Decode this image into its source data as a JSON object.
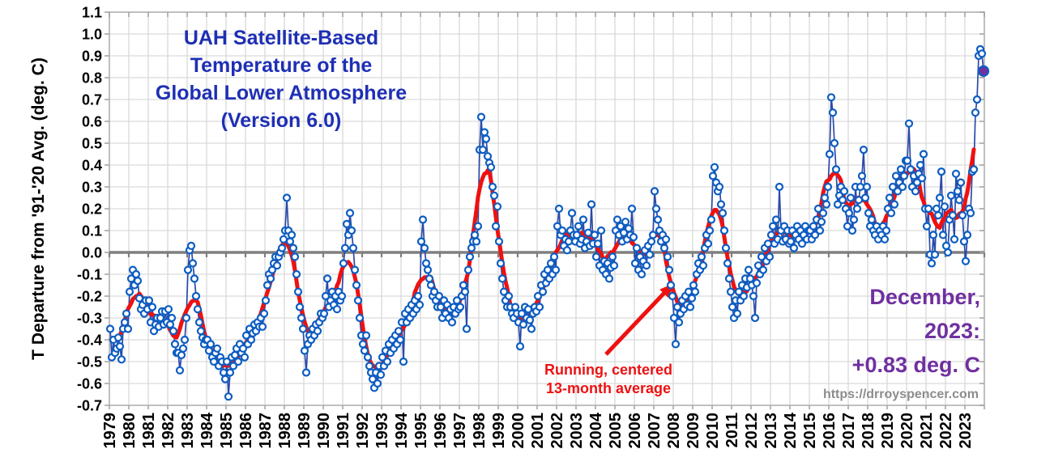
{
  "title": {
    "line1": "UAH Satellite-Based",
    "line2": "Temperature of the",
    "line3": "Global Lower Atmosphere",
    "line4": "(Version 6.0)",
    "color": "#1e2fb4"
  },
  "y_axis_title": "T Departure from '91-'20 Avg. (deg. C)",
  "annotations": {
    "smooth_line1": "Running, centered",
    "smooth_line2": "13-month average",
    "highlight_line1": "December,",
    "highlight_line2": "2023:",
    "highlight_line3": "+0.83 deg. C",
    "site_url": "https://drroyspencer.com"
  },
  "colors": {
    "monthly_line": "#2a4aa8",
    "marker_stroke": "#0d5dc2",
    "marker_fill": "#ffffff",
    "smoothed_line": "#ee1111",
    "zero_line": "#7f7f7f",
    "grid": "#d9d9d9",
    "border": "#bfbfbf",
    "tick": "#a6a6a6",
    "title_text": "#1e2fb4",
    "annotation_red": "#ee1111",
    "highlight_purple": "#7030a0",
    "url_gray": "#8c8c8c",
    "axis_text": "#000000"
  },
  "chart_data": {
    "type": "line",
    "title": "UAH Satellite-Based Temperature of the Global Lower Atmosphere (Version 6.0)",
    "ylabel": "T Departure from '91-'20 Avg. (deg. C)",
    "ylim": [
      -0.7,
      1.1
    ],
    "y_tick_labels": [
      "1.1",
      "1.0",
      "0.9",
      "0.8",
      "0.7",
      "0.6",
      "0.5",
      "0.4",
      "0.3",
      "0.2",
      "0.1",
      "0.0",
      "-0.1",
      "-0.2",
      "-0.3",
      "-0.4",
      "-0.5",
      "-0.6",
      "-0.7"
    ],
    "x_tick_labels": [
      "1979",
      "1980",
      "1981",
      "1982",
      "1983",
      "1984",
      "1985",
      "1986",
      "1987",
      "1988",
      "1989",
      "1990",
      "1991",
      "1992",
      "1993",
      "1994",
      "1995",
      "1996",
      "1997",
      "1998",
      "1999",
      "2000",
      "2001",
      "2002",
      "2003",
      "2004",
      "2005",
      "2006",
      "2007",
      "2008",
      "2009",
      "2010",
      "2011",
      "2012",
      "2013",
      "2014",
      "2015",
      "2016",
      "2017",
      "2018",
      "2019",
      "2020",
      "2021",
      "2022",
      "2023"
    ],
    "xlim_years": [
      1979,
      2024
    ],
    "grid": true,
    "series": [
      {
        "name": "Monthly anomaly",
        "style": "line+open-circle-markers"
      },
      {
        "name": "Running, centered 13-month average",
        "style": "thick-line",
        "window_months": 13
      }
    ],
    "monthly": {
      "start_year": 1979,
      "values_by_year": [
        [
          -0.35,
          -0.48,
          -0.4,
          -0.46,
          -0.44,
          -0.39,
          -0.43,
          -0.49,
          -0.35,
          -0.32,
          -0.28,
          -0.35
        ],
        [
          -0.18,
          -0.12,
          -0.08,
          -0.15,
          -0.1,
          -0.13,
          -0.21,
          -0.26,
          -0.24,
          -0.28,
          -0.22,
          -0.26
        ],
        [
          -0.22,
          -0.32,
          -0.25,
          -0.36,
          -0.33,
          -0.3,
          -0.34,
          -0.3,
          -0.27,
          -0.33,
          -0.27,
          -0.32
        ],
        [
          -0.26,
          -0.33,
          -0.3,
          -0.36,
          -0.42,
          -0.46,
          -0.46,
          -0.54,
          -0.47,
          -0.44,
          -0.4,
          -0.3
        ],
        [
          -0.08,
          0.01,
          0.03,
          -0.05,
          -0.12,
          -0.2,
          -0.26,
          -0.32,
          -0.36,
          -0.39,
          -0.42,
          -0.4
        ],
        [
          -0.4,
          -0.45,
          -0.42,
          -0.48,
          -0.5,
          -0.46,
          -0.44,
          -0.52,
          -0.48,
          -0.5,
          -0.55,
          -0.58
        ],
        [
          -0.5,
          -0.66,
          -0.55,
          -0.48,
          -0.52,
          -0.47,
          -0.44,
          -0.5,
          -0.42,
          -0.46,
          -0.44,
          -0.48
        ],
        [
          -0.38,
          -0.42,
          -0.35,
          -0.4,
          -0.37,
          -0.33,
          -0.36,
          -0.32,
          -0.34,
          -0.3,
          -0.34,
          -0.28
        ],
        [
          -0.22,
          -0.15,
          -0.1,
          -0.12,
          -0.08,
          -0.05,
          -0.02,
          -0.06,
          -0.02,
          0.0,
          0.02,
          0.06
        ],
        [
          0.1,
          0.25,
          0.1,
          0.05,
          0.08,
          0.02,
          -0.02,
          -0.1,
          -0.18,
          -0.25,
          -0.3,
          -0.35
        ],
        [
          -0.45,
          -0.55,
          -0.42,
          -0.38,
          -0.4,
          -0.35,
          -0.38,
          -0.33,
          -0.36,
          -0.32,
          -0.28,
          -0.3
        ],
        [
          -0.28,
          -0.2,
          -0.12,
          -0.25,
          -0.22,
          -0.18,
          -0.24,
          -0.2,
          -0.26,
          -0.18,
          -0.22,
          -0.2
        ],
        [
          -0.05,
          0.02,
          0.13,
          0.08,
          0.18,
          0.1,
          0.02,
          -0.08,
          -0.15,
          -0.22,
          -0.3,
          -0.38
        ],
        [
          -0.42,
          -0.45,
          -0.38,
          -0.48,
          -0.52,
          -0.55,
          -0.58,
          -0.62,
          -0.55,
          -0.6,
          -0.52,
          -0.56
        ],
        [
          -0.48,
          -0.52,
          -0.45,
          -0.5,
          -0.42,
          -0.46,
          -0.4,
          -0.44,
          -0.38,
          -0.42,
          -0.36,
          -0.4
        ],
        [
          -0.32,
          -0.5,
          -0.28,
          -0.32,
          -0.26,
          -0.3,
          -0.24,
          -0.28,
          -0.22,
          -0.26,
          -0.2,
          -0.24
        ],
        [
          0.05,
          0.15,
          0.02,
          -0.05,
          -0.08,
          -0.12,
          -0.15,
          -0.2,
          -0.18,
          -0.22,
          -0.25,
          -0.2
        ],
        [
          -0.25,
          -0.3,
          -0.22,
          -0.28,
          -0.24,
          -0.3,
          -0.26,
          -0.32,
          -0.25,
          -0.28,
          -0.22,
          -0.26
        ],
        [
          -0.25,
          -0.2,
          -0.15,
          -0.18,
          -0.35,
          -0.08,
          -0.02,
          0.02,
          0.05,
          0.08,
          0.05,
          0.12
        ],
        [
          0.47,
          0.62,
          0.47,
          0.55,
          0.52,
          0.44,
          0.41,
          0.39,
          0.3,
          0.26,
          0.12,
          0.21
        ],
        [
          0.05,
          -0.05,
          -0.12,
          -0.18,
          -0.22,
          -0.25,
          -0.2,
          -0.25,
          -0.28,
          -0.3,
          -0.25,
          -0.28
        ],
        [
          -0.32,
          -0.43,
          -0.28,
          -0.33,
          -0.25,
          -0.3,
          -0.26,
          -0.31,
          -0.35,
          -0.28,
          -0.25,
          -0.27
        ],
        [
          -0.2,
          -0.25,
          -0.15,
          -0.18,
          -0.1,
          -0.14,
          -0.08,
          -0.12,
          -0.05,
          -0.1,
          -0.02,
          -0.08
        ],
        [
          0.12,
          0.2,
          0.08,
          0.1,
          0.03,
          0.06,
          0.01,
          0.05,
          0.1,
          0.18,
          0.08,
          0.05
        ],
        [
          0.08,
          0.12,
          0.04,
          0.06,
          0.15,
          0.02,
          0.05,
          0.09,
          0.03,
          0.22,
          0.04,
          0.08
        ],
        [
          -0.02,
          0.04,
          -0.06,
          0.1,
          -0.08,
          -0.04,
          -0.1,
          -0.05,
          -0.12,
          -0.07,
          -0.02,
          -0.06
        ],
        [
          0.1,
          0.15,
          0.08,
          0.12,
          0.05,
          0.09,
          0.14,
          0.06,
          0.11,
          0.08,
          0.2,
          0.07
        ],
        [
          -0.05,
          0.02,
          -0.08,
          -0.02,
          -0.1,
          -0.04,
          0.01,
          -0.06,
          0.03,
          -0.01,
          0.05,
          0.08
        ],
        [
          0.28,
          0.2,
          0.15,
          0.1,
          0.05,
          0.08,
          0.02,
          0.06,
          -0.02,
          -0.08,
          -0.15,
          -0.2
        ],
        [
          -0.3,
          -0.42,
          -0.25,
          -0.32,
          -0.28,
          -0.22,
          -0.26,
          -0.2,
          -0.24,
          -0.18,
          -0.25,
          -0.21
        ],
        [
          -0.15,
          -0.18,
          -0.1,
          -0.05,
          -0.08,
          -0.02,
          -0.06,
          0.02,
          0.08,
          0.04,
          0.1,
          0.15
        ],
        [
          0.35,
          0.39,
          0.32,
          0.28,
          0.3,
          0.22,
          0.18,
          0.1,
          0.02,
          -0.05,
          -0.12,
          -0.18
        ],
        [
          -0.25,
          -0.3,
          -0.22,
          -0.28,
          -0.18,
          -0.22,
          -0.15,
          -0.2,
          -0.12,
          -0.16,
          -0.08,
          -0.12
        ],
        [
          -0.15,
          -0.2,
          -0.3,
          -0.14,
          -0.06,
          -0.1,
          -0.02,
          -0.08,
          0.02,
          -0.04,
          0.04,
          -0.02
        ],
        [
          0.08,
          0.12,
          0.04,
          0.15,
          0.06,
          0.3,
          0.1,
          0.05,
          0.12,
          0.06,
          0.1,
          0.04
        ],
        [
          0.05,
          0.1,
          0.02,
          0.08,
          0.12,
          0.06,
          0.1,
          0.04,
          0.08,
          0.12,
          0.06,
          0.1
        ],
        [
          0.1,
          0.06,
          0.12,
          0.08,
          0.15,
          0.2,
          0.1,
          0.14,
          0.18,
          0.25,
          0.22,
          0.3
        ],
        [
          0.45,
          0.71,
          0.64,
          0.5,
          0.38,
          0.22,
          0.26,
          0.3,
          0.24,
          0.28,
          0.2,
          0.12
        ],
        [
          0.18,
          0.25,
          0.1,
          0.15,
          0.3,
          0.2,
          0.24,
          0.3,
          0.35,
          0.47,
          0.25,
          0.3
        ],
        [
          0.18,
          0.12,
          0.15,
          0.1,
          0.08,
          0.12,
          0.06,
          0.1,
          0.08,
          0.12,
          0.06,
          0.1
        ],
        [
          0.2,
          0.25,
          0.18,
          0.3,
          0.22,
          0.35,
          0.28,
          0.32,
          0.38,
          0.3,
          0.35,
          0.42
        ],
        [
          0.42,
          0.59,
          0.38,
          0.3,
          0.35,
          0.28,
          0.32,
          0.36,
          0.4,
          0.34,
          0.45,
          0.2
        ],
        [
          0.12,
          0.2,
          -0.01,
          -0.05,
          0.08,
          -0.01,
          0.2,
          0.17,
          0.25,
          0.37,
          0.08,
          0.21
        ],
        [
          0.03,
          0.0,
          0.15,
          0.26,
          0.17,
          0.06,
          0.36,
          0.28,
          0.24,
          0.32,
          0.17,
          0.05
        ],
        [
          -0.04,
          0.08,
          0.2,
          0.18,
          0.37,
          0.38,
          0.64,
          0.7,
          0.9,
          0.93,
          0.91,
          0.83
        ]
      ]
    },
    "last_point": {
      "date": "December, 2023",
      "value": 0.83,
      "marker": "filled-purple-circle"
    }
  }
}
